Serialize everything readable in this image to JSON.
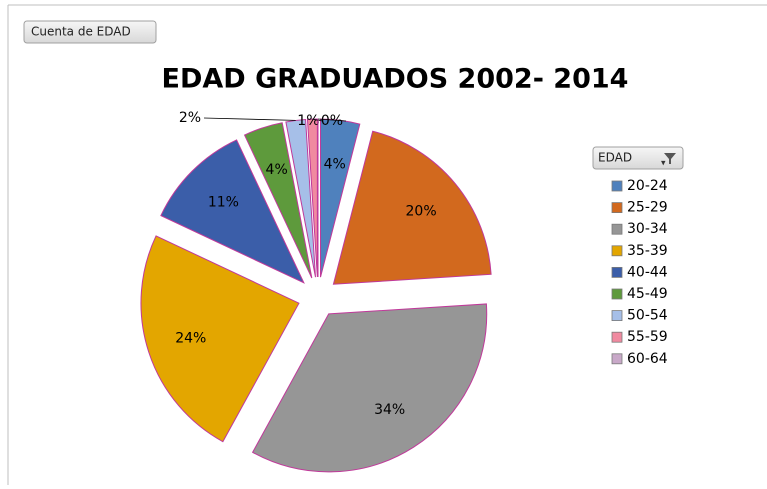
{
  "filter_button": "Cuenta de EDAD",
  "chart_data": {
    "type": "pie",
    "title": "EDAD GRADUADOS 2002- 2014",
    "legend_title": "EDAD",
    "categories": [
      "20-24",
      "25-29",
      "30-34",
      "35-39",
      "40-44",
      "45-49",
      "50-54",
      "55-59",
      "60-64"
    ],
    "values": [
      4,
      20,
      34,
      24,
      11,
      4,
      2,
      1,
      0
    ],
    "value_labels": [
      "4%",
      "20%",
      "34%",
      "24%",
      "11%",
      "4%",
      "2%",
      "1%",
      "0%"
    ],
    "colors": [
      "#4f81bd",
      "#d2691e",
      "#969696",
      "#e3a600",
      "#3b5ea9",
      "#5e9a3c",
      "#a6bfe8",
      "#f08aa0",
      "#c8a8c8"
    ],
    "legend": "right"
  }
}
